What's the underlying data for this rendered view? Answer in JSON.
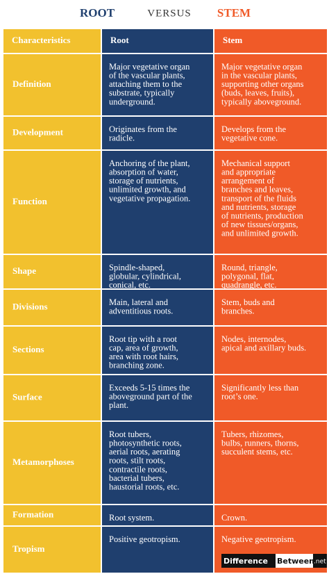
{
  "title": {
    "left": "ROOT",
    "middle": "VERSUS",
    "right": "STEM"
  },
  "table": {
    "header": [
      "Characteristics",
      "Root",
      "Stem"
    ],
    "rows": [
      {
        "label": "Definition",
        "root": [
          "Major vegetative organ",
          "of the vascular plants,",
          "attaching them to the",
          "substrate, typically",
          "underground."
        ],
        "stem": [
          "Major vegetative organ",
          "in the vascular plants,",
          "supporting other organs",
          "(buds, leaves, fruits),",
          "typically aboveground."
        ]
      },
      {
        "label": "Development",
        "root": [
          "Originates from the",
          "radicle."
        ],
        "stem": [
          "Develops from the",
          "vegetative cone."
        ]
      },
      {
        "label": "Function",
        "root": [
          "Anchoring of the plant,",
          "absorption of water,",
          "storage of nutrients,",
          "unlimited growth, and",
          "vegetative propagation."
        ],
        "stem": [
          "Mechanical support",
          "and appropriate",
          "arrangement of",
          "branches and leaves,",
          "transport of the fluids",
          "and nutrients, storage",
          "of nutrients, production",
          "of new tissues/organs,",
          "and unlimited growth."
        ]
      },
      {
        "label": "Shape",
        "root": [
          "Spindle-shaped,",
          "globular, cylindrical,",
          "conical, etc."
        ],
        "stem": [
          "Round, triangle,",
          "polygonal, flat,",
          "quadrangle, etc."
        ]
      },
      {
        "label": "Divisions",
        "root": [
          "Main, lateral and",
          "adventitious roots."
        ],
        "stem": [
          "Stem, buds and",
          "branches."
        ]
      },
      {
        "label": "Sections",
        "root": [
          "Root tip with a root",
          "cap, area of growth,",
          "area with root hairs,",
          "branching zone."
        ],
        "stem": [
          "Nodes, internodes,",
          "apical and axillary buds."
        ]
      },
      {
        "label": "Surface",
        "root": [
          "Exceeds 5-15 times the",
          "aboveground part of the",
          "plant."
        ],
        "stem": [
          "Significantly less than",
          "root’s one."
        ]
      },
      {
        "label": "Metamorphoses",
        "root": [
          "Root tubers,",
          "photosynthetic roots,",
          "aerial roots, aerating",
          "roots, stilt roots,",
          "contractile roots,",
          "bacterial tubers,",
          "haustorial roots, etc."
        ],
        "stem": [
          "Tubers, rhizomes,",
          "bulbs, runners, thorns,",
          "succulent stems, etc."
        ]
      },
      {
        "label": "Formation",
        "root": [
          "Root system."
        ],
        "stem": [
          "Crown."
        ]
      },
      {
        "label": "Tropism",
        "root": [
          "Positive geotropism."
        ],
        "stem": [
          "Negative geotropism."
        ]
      }
    ]
  },
  "logo": [
    "Difference",
    "Between",
    ".net"
  ]
}
